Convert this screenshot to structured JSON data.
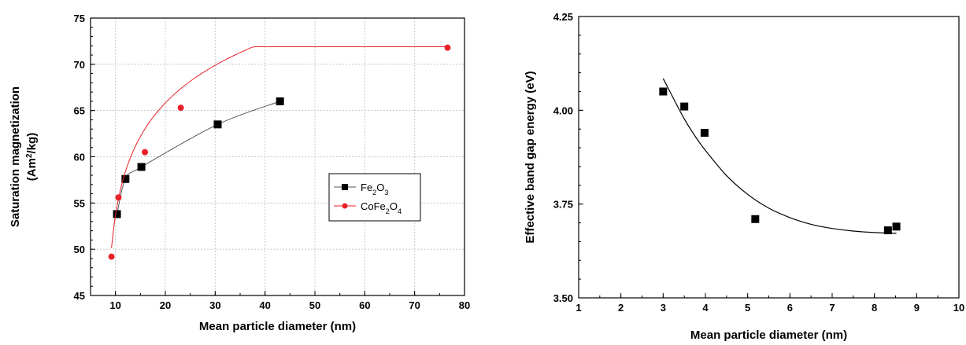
{
  "chart_data": [
    {
      "type": "scatter",
      "title": "",
      "xlabel": "Mean particle diameter (nm)",
      "ylabel_line1": "Saturation magnetization",
      "ylabel_line2_prefix": "(Am",
      "ylabel_line2_sup": "2",
      "ylabel_line2_suffix": "/kg)",
      "xlim": [
        5,
        80
      ],
      "ylim": [
        45,
        75
      ],
      "xticks": [
        10,
        20,
        30,
        40,
        50,
        60,
        70,
        80
      ],
      "yticks": [
        45,
        50,
        55,
        60,
        65,
        70,
        75
      ],
      "grid": true,
      "legend_position": "center-right",
      "series": [
        {
          "name": "Fe2O3",
          "legend_parts": [
            [
              "Fe",
              false
            ],
            [
              "2",
              true
            ],
            [
              "O",
              false
            ],
            [
              "3",
              true
            ]
          ],
          "marker": "square",
          "color": "#000000",
          "line_color": "#555555",
          "x": [
            10.3,
            12.0,
            15.2,
            30.5,
            43.0
          ],
          "y": [
            53.8,
            57.6,
            58.9,
            63.5,
            66.0
          ]
        },
        {
          "name": "CoFe2O4",
          "legend_parts": [
            [
              "CoFe",
              false
            ],
            [
              "2",
              true
            ],
            [
              "O",
              false
            ],
            [
              "4",
              true
            ]
          ],
          "marker": "circle",
          "color": "#e8202a",
          "line_color": "#e8202a",
          "x": [
            9.2,
            10.6,
            15.9,
            23.1,
            76.6
          ],
          "y": [
            49.2,
            55.6,
            60.5,
            65.3,
            71.8
          ]
        }
      ]
    },
    {
      "type": "scatter",
      "title": "",
      "xlabel": "Mean particle diameter (nm)",
      "ylabel": "Effective band gap energy (eV)",
      "xlim": [
        1,
        10
      ],
      "ylim": [
        3.5,
        4.25
      ],
      "xticks": [
        1,
        2,
        3,
        4,
        5,
        6,
        7,
        8,
        9,
        10
      ],
      "yticks": [
        3.5,
        3.75,
        4.0,
        4.25
      ],
      "ytick_labels": [
        "3.50",
        "3.75",
        "4.00",
        "4.25"
      ],
      "grid": false,
      "series": [
        {
          "marker": "square",
          "color": "#000000",
          "x": [
            3.0,
            3.5,
            3.98,
            5.18,
            8.32,
            8.52
          ],
          "y": [
            4.05,
            4.01,
            3.94,
            3.71,
            3.68,
            3.69
          ]
        }
      ],
      "fit_curve": {
        "x": [
          3.0,
          3.25,
          3.5,
          3.75,
          4.0,
          4.5,
          5.0,
          5.5,
          6.0,
          6.5,
          7.0,
          7.5,
          8.0,
          8.52
        ],
        "y": [
          4.085,
          4.03,
          3.977,
          3.932,
          3.893,
          3.826,
          3.776,
          3.739,
          3.714,
          3.696,
          3.685,
          3.678,
          3.674,
          3.672
        ]
      }
    }
  ]
}
